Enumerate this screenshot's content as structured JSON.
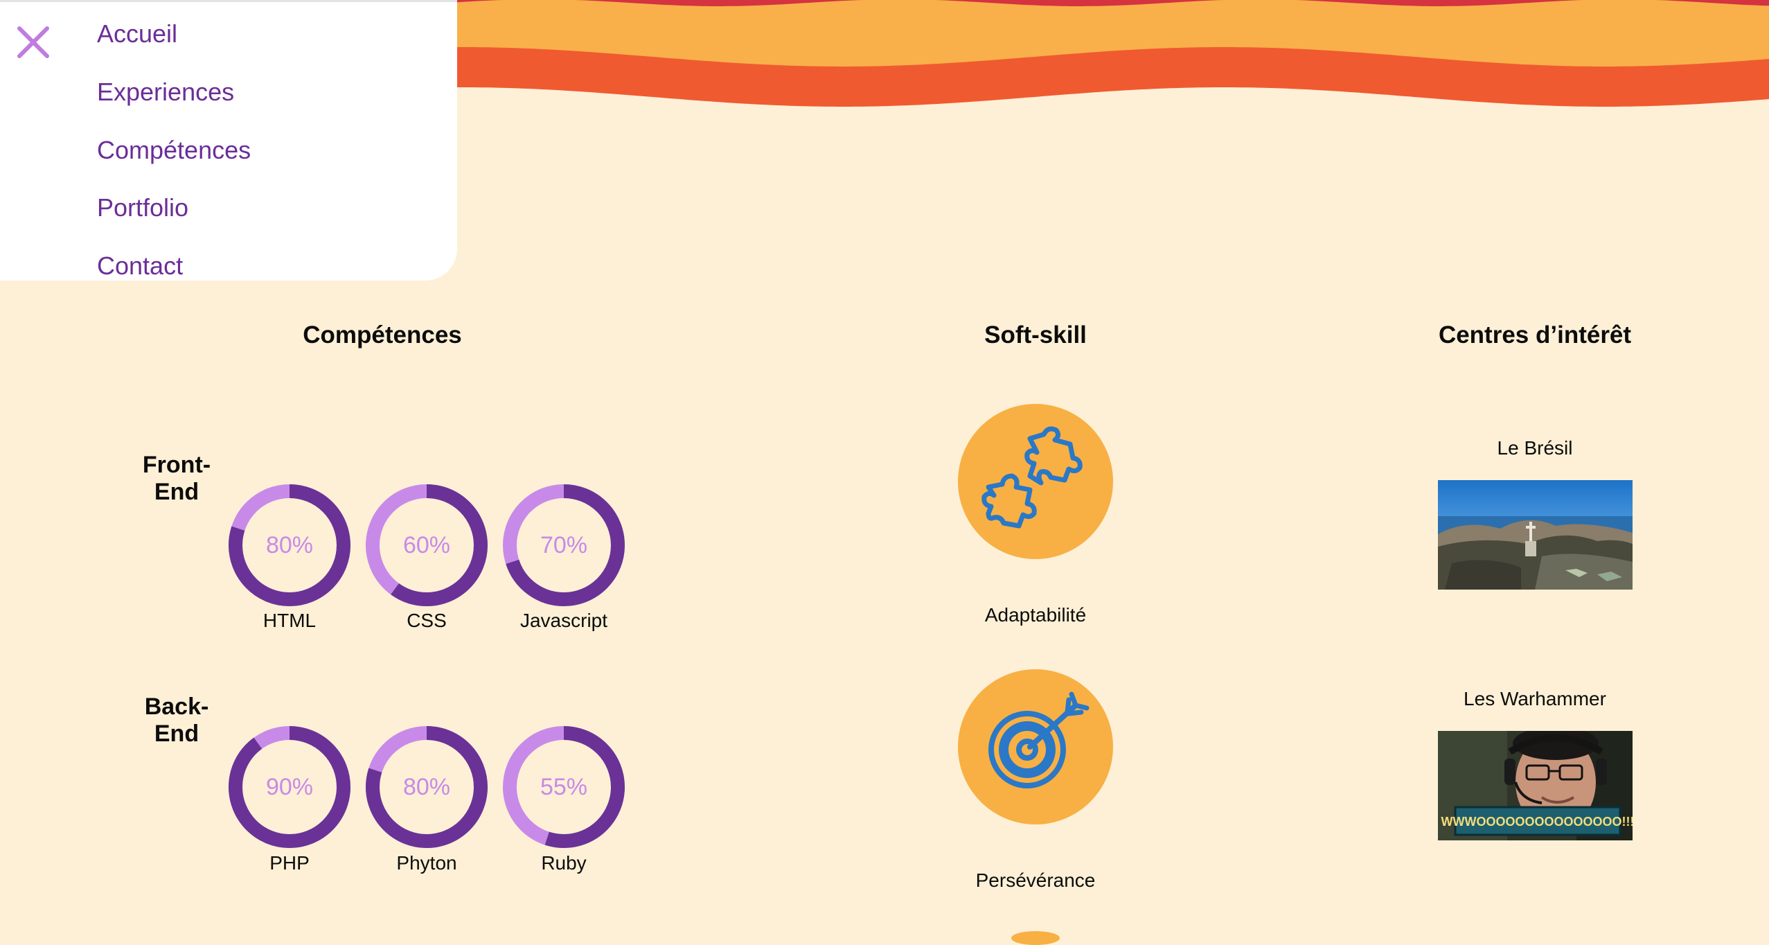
{
  "colors": {
    "background": "#fdf0d6",
    "wave_yellow": "#f9b04a",
    "wave_orange": "#f05a30",
    "nav_text": "#6b2d97",
    "close_icon": "#c07ce0",
    "ring_light": "#c88ae8",
    "ring_dark": "#6a3296",
    "soft_skill_circle": "#f8b044",
    "soft_skill_icon": "#2a78c7"
  },
  "nav": {
    "close_icon": "close-icon",
    "items": [
      {
        "label": "Accueil"
      },
      {
        "label": "Experiences"
      },
      {
        "label": "Compétences"
      },
      {
        "label": "Portfolio"
      },
      {
        "label": "Contact"
      }
    ]
  },
  "competences": {
    "title": "Compétences",
    "groups": [
      {
        "label_line1": "Front-",
        "label_line2": "End",
        "skills": [
          {
            "name": "HTML",
            "percent_label": "80%",
            "percent": 80
          },
          {
            "name": "CSS",
            "percent_label": "60%",
            "percent": 60
          },
          {
            "name": "Javascript",
            "percent_label": "70%",
            "percent": 70
          }
        ]
      },
      {
        "label_line1": "Back-",
        "label_line2": "End",
        "skills": [
          {
            "name": "PHP",
            "percent_label": "90%",
            "percent": 90
          },
          {
            "name": "Phyton",
            "percent_label": "80%",
            "percent": 80
          },
          {
            "name": "Ruby",
            "percent_label": "55%",
            "percent": 55
          }
        ]
      }
    ]
  },
  "soft_skills": {
    "title": "Soft-skill",
    "items": [
      {
        "label": "Adaptabilité",
        "icon": "puzzle-icon"
      },
      {
        "label": "Persévérance",
        "icon": "target-icon"
      }
    ]
  },
  "interests": {
    "title": "Centres d’intérêt",
    "items": [
      {
        "label": "Le Brésil",
        "image": "rio-christ-photo"
      },
      {
        "label": "Les Warhammer",
        "image": "warhammer-streamer-photo",
        "caption": "WWWOOOOOOOOOOOOOOO!!!"
      }
    ]
  }
}
